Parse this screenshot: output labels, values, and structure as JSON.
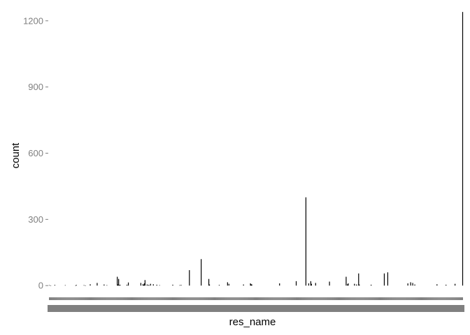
{
  "chart_data": {
    "type": "bar",
    "xlabel": "res_name",
    "ylabel": "count",
    "ylim": [
      -50,
      1250
    ],
    "yticks": [
      0,
      300,
      600,
      900,
      1200
    ],
    "ytick_labels": [
      "0",
      "300",
      "600",
      "900",
      "1200"
    ],
    "grid": false,
    "legend": "none",
    "bar_color": "#000000",
    "x_tick_color": "#808080",
    "values": [
      2,
      0,
      1,
      0,
      0,
      0,
      0,
      0,
      3,
      0,
      0,
      0,
      0,
      0,
      0,
      0,
      0,
      0,
      0,
      0,
      0,
      0,
      0,
      2,
      0,
      0,
      0,
      0,
      0,
      0,
      0,
      0,
      0,
      0,
      0,
      0,
      0,
      0,
      1,
      3,
      0,
      0,
      0,
      0,
      0,
      0,
      0,
      0,
      0,
      0,
      2,
      0,
      1,
      0,
      0,
      0,
      0,
      0,
      0,
      6,
      0,
      0,
      0,
      0,
      0,
      0,
      0,
      0,
      0,
      12,
      0,
      0,
      0,
      0,
      0,
      0,
      0,
      0,
      0,
      5,
      0,
      0,
      0,
      2,
      0,
      0,
      0,
      0,
      0,
      0,
      0,
      0,
      0,
      0,
      0,
      0,
      0,
      0,
      40,
      5,
      30,
      2,
      4,
      0,
      0,
      0,
      0,
      0,
      0,
      0,
      0,
      0,
      4,
      0,
      14,
      0,
      0,
      0,
      0,
      0,
      0,
      0,
      0,
      0,
      0,
      0,
      0,
      0,
      0,
      0,
      0,
      0,
      12,
      0,
      0,
      6,
      4,
      10,
      25,
      0,
      0,
      5,
      0,
      3,
      2,
      0,
      8,
      0,
      0,
      0,
      6,
      0,
      0,
      0,
      0,
      4,
      0,
      0,
      0,
      2,
      0,
      0,
      0,
      0,
      0,
      0,
      0,
      0,
      0,
      0,
      0,
      0,
      0,
      0,
      0,
      0,
      0,
      0,
      4,
      0,
      0,
      0,
      0,
      0,
      0,
      0,
      0,
      0,
      2,
      0,
      3,
      0,
      0,
      0,
      0,
      0,
      0,
      0,
      0,
      0,
      0,
      0,
      70,
      0,
      0,
      0,
      0,
      0,
      0,
      0,
      0,
      0,
      0,
      0,
      0,
      0,
      0,
      0,
      0,
      120,
      0,
      0,
      0,
      0,
      0,
      0,
      0,
      0,
      0,
      0,
      30,
      5,
      0,
      0,
      0,
      0,
      0,
      0,
      0,
      0,
      0,
      0,
      0,
      0,
      0,
      3,
      0,
      0,
      0,
      0,
      0,
      0,
      0,
      0,
      0,
      0,
      0,
      15,
      0,
      8,
      0,
      0,
      0,
      0,
      0,
      0,
      0,
      0,
      0,
      0,
      0,
      0,
      0,
      0,
      0,
      0,
      0,
      0,
      0,
      0,
      5,
      0,
      0,
      0,
      0,
      0,
      0,
      0,
      0,
      0,
      10,
      6,
      5,
      0,
      0,
      0,
      0,
      0,
      0,
      0,
      0,
      0,
      0,
      0,
      0,
      0,
      0,
      0,
      0,
      0,
      0,
      0,
      0,
      0,
      0,
      0,
      0,
      0,
      0,
      0,
      0,
      0,
      0,
      0,
      0,
      0,
      0,
      0,
      0,
      0,
      0,
      0,
      10,
      0,
      0,
      0,
      0,
      0,
      0,
      0,
      0,
      0,
      0,
      0,
      0,
      0,
      0,
      0,
      0,
      0,
      0,
      0,
      0,
      0,
      0,
      0,
      20,
      0,
      0,
      0,
      0,
      0,
      0,
      0,
      0,
      0,
      0,
      0,
      0,
      0,
      400,
      0,
      0,
      0,
      10,
      0,
      0,
      20,
      8,
      0,
      0,
      0,
      0,
      0,
      12,
      0,
      0,
      0,
      0,
      0,
      0,
      0,
      0,
      0,
      0,
      0,
      0,
      0,
      0,
      0,
      0,
      0,
      0,
      0,
      18,
      0,
      0,
      0,
      0,
      0,
      0,
      0,
      0,
      0,
      0,
      0,
      0,
      0,
      0,
      0,
      0,
      0,
      0,
      0,
      0,
      0,
      0,
      0,
      40,
      0,
      6,
      10,
      0,
      0,
      0,
      0,
      0,
      0,
      0,
      0,
      8,
      0,
      0,
      5,
      0,
      0,
      55,
      5,
      0,
      0,
      0,
      0,
      0,
      0,
      0,
      0,
      0,
      0,
      0,
      0,
      0,
      0,
      0,
      0,
      4,
      0,
      0,
      0,
      0,
      0,
      0,
      0,
      0,
      0,
      0,
      0,
      0,
      0,
      0,
      0,
      0,
      0,
      0,
      55,
      0,
      0,
      0,
      0,
      60,
      0,
      0,
      0,
      0,
      0,
      0,
      0,
      0,
      0,
      0,
      0,
      0,
      0,
      0,
      0,
      0,
      0,
      0,
      0,
      0,
      0,
      0,
      0,
      0,
      0,
      0,
      0,
      0,
      10,
      0,
      0,
      0,
      15,
      0,
      0,
      12,
      0,
      0,
      5,
      0,
      0,
      0,
      0,
      0,
      0,
      0,
      0,
      0,
      0,
      0,
      0,
      0,
      0,
      0,
      0,
      0,
      0,
      0,
      0,
      0,
      0,
      0,
      0,
      0,
      0,
      0,
      0,
      0,
      0,
      0,
      6,
      0,
      0,
      0,
      0,
      0,
      0,
      0,
      0,
      0,
      0,
      0,
      0,
      4,
      0,
      0,
      0,
      0,
      0,
      0,
      0,
      0,
      0,
      0,
      0,
      0,
      8,
      0,
      0,
      0,
      0,
      0,
      0,
      0,
      0,
      0,
      0,
      1240
    ]
  }
}
